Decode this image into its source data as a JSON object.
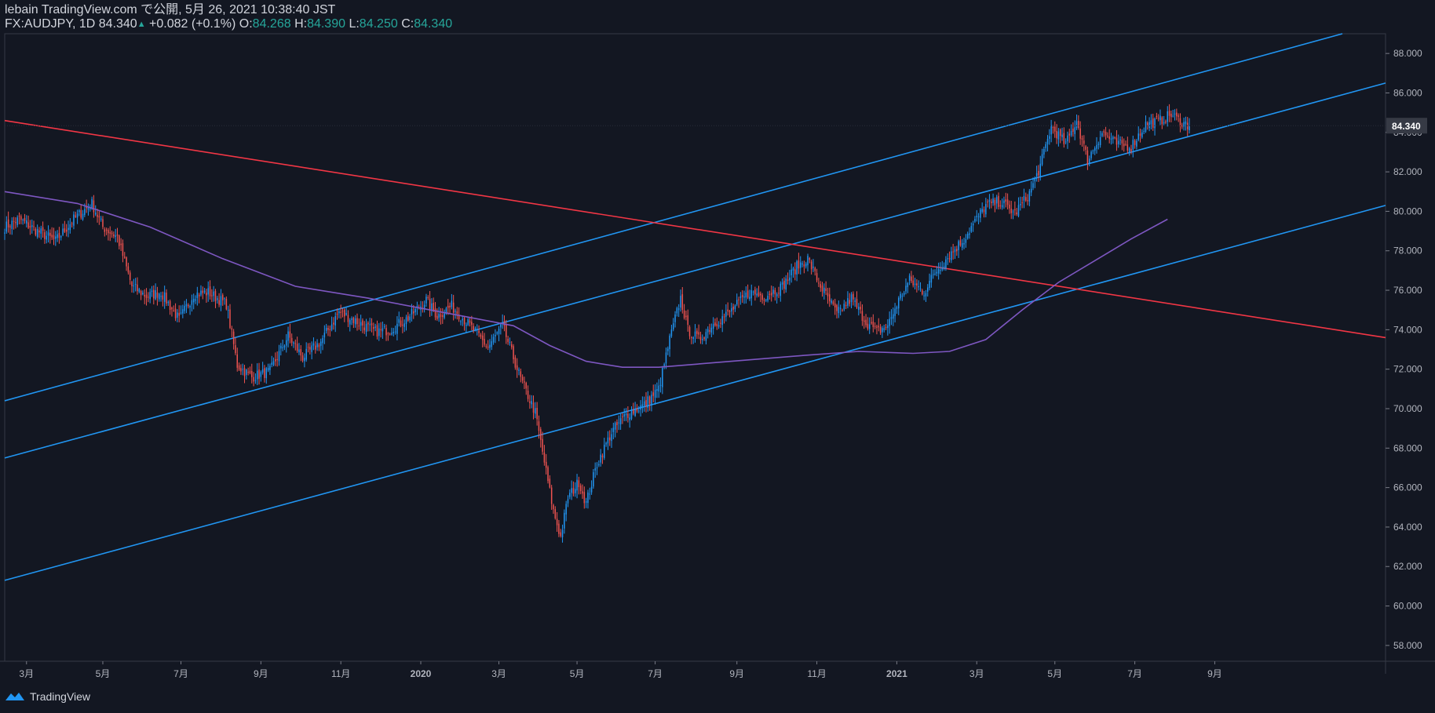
{
  "header": {
    "line1": "lebain TradingView.com で公開, 5月 26, 2021 10:38:40 JST",
    "symbol": "FX:AUDJPY, 1D",
    "last": "84.340",
    "change": "+0.082 (+0.1%)",
    "o_label": "O:",
    "o": "84.268",
    "h_label": "H:",
    "h": "84.390",
    "l_label": "L:",
    "l": "84.250",
    "c_label": "C:",
    "c": "84.340"
  },
  "footer": {
    "brand": "TradingView"
  },
  "colors": {
    "background": "#131722",
    "bull": "#2196f3",
    "bear": "#ef5350",
    "channel": "#2196f3",
    "resistance": "#f23645",
    "ma": "#7e57c2",
    "axis_text": "#b2b5be",
    "price_label_bg": "#363a45"
  },
  "chart_data": {
    "type": "candlestick",
    "symbol": "FX:AUDJPY",
    "interval": "1D",
    "y_range": [
      57.2,
      89.0
    ],
    "y_ticks": [
      "58.000",
      "60.000",
      "62.000",
      "64.000",
      "66.000",
      "68.000",
      "70.000",
      "72.000",
      "74.000",
      "76.000",
      "78.000",
      "80.000",
      "82.000",
      "84.000",
      "86.000",
      "88.000"
    ],
    "x_ticks": [
      "3月",
      "5月",
      "7月",
      "9月",
      "11月",
      "2020",
      "3月",
      "5月",
      "7月",
      "9月",
      "11月",
      "2021",
      "3月",
      "5月",
      "7月",
      "9月"
    ],
    "current_price_label": "84.340",
    "close_path": [
      [
        0,
        79.2
      ],
      [
        8,
        79.6
      ],
      [
        18,
        79.0
      ],
      [
        28,
        78.5
      ],
      [
        38,
        79.6
      ],
      [
        48,
        80.4
      ],
      [
        54,
        79.2
      ],
      [
        62,
        78.7
      ],
      [
        70,
        76.2
      ],
      [
        78,
        75.7
      ],
      [
        86,
        75.9
      ],
      [
        96,
        74.5
      ],
      [
        104,
        75.8
      ],
      [
        112,
        75.9
      ],
      [
        122,
        75.3
      ],
      [
        128,
        72.2
      ],
      [
        136,
        71.6
      ],
      [
        146,
        71.9
      ],
      [
        156,
        73.7
      ],
      [
        164,
        72.6
      ],
      [
        174,
        73.4
      ],
      [
        184,
        74.9
      ],
      [
        194,
        74.4
      ],
      [
        204,
        73.9
      ],
      [
        212,
        74.0
      ],
      [
        222,
        74.6
      ],
      [
        232,
        75.5
      ],
      [
        238,
        74.7
      ],
      [
        246,
        75.2
      ],
      [
        258,
        74.0
      ],
      [
        266,
        73.1
      ],
      [
        274,
        74.2
      ],
      [
        284,
        71.5
      ],
      [
        292,
        69.8
      ],
      [
        296,
        67.8
      ],
      [
        302,
        64.8
      ],
      [
        306,
        63.5
      ],
      [
        310,
        65.5
      ],
      [
        316,
        66.3
      ],
      [
        320,
        65.2
      ],
      [
        326,
        67.2
      ],
      [
        334,
        68.8
      ],
      [
        342,
        69.7
      ],
      [
        352,
        70.2
      ],
      [
        360,
        71.0
      ],
      [
        366,
        73.5
      ],
      [
        372,
        75.6
      ],
      [
        376,
        74.0
      ],
      [
        382,
        73.5
      ],
      [
        390,
        74.3
      ],
      [
        398,
        74.8
      ],
      [
        410,
        75.9
      ],
      [
        418,
        75.7
      ],
      [
        428,
        76.2
      ],
      [
        436,
        77.2
      ],
      [
        442,
        77.6
      ],
      [
        448,
        76.4
      ],
      [
        458,
        74.8
      ],
      [
        466,
        75.6
      ],
      [
        474,
        74.4
      ],
      [
        480,
        73.9
      ],
      [
        486,
        74.2
      ],
      [
        492,
        75.5
      ],
      [
        498,
        76.5
      ],
      [
        506,
        75.9
      ],
      [
        512,
        76.9
      ],
      [
        520,
        77.8
      ],
      [
        528,
        78.6
      ],
      [
        532,
        79.2
      ],
      [
        540,
        80.3
      ],
      [
        548,
        80.5
      ],
      [
        556,
        79.9
      ],
      [
        564,
        80.9
      ],
      [
        570,
        82.3
      ],
      [
        576,
        84.3
      ],
      [
        584,
        83.4
      ],
      [
        590,
        84.6
      ],
      [
        596,
        82.6
      ],
      [
        604,
        84.0
      ],
      [
        612,
        83.4
      ],
      [
        620,
        83.3
      ],
      [
        628,
        84.4
      ],
      [
        636,
        84.6
      ],
      [
        642,
        84.9
      ],
      [
        648,
        84.5
      ],
      [
        652,
        84.34
      ]
    ],
    "trendlines": [
      {
        "kind": "channel-upper",
        "from": [
          "2019-02",
          "70.4"
        ],
        "to": [
          "2021-09",
          "89.0"
        ]
      },
      {
        "kind": "channel-middle",
        "from": [
          "2019-02",
          "67.5"
        ],
        "to": [
          "2021-10",
          "86.5"
        ]
      },
      {
        "kind": "channel-lower",
        "from": [
          "2019-02",
          "61.3"
        ],
        "to": [
          "2021-10",
          "80.3"
        ]
      },
      {
        "kind": "resistance",
        "from": [
          "2019-02",
          "84.6"
        ],
        "to": [
          "2021-10",
          "73.6"
        ]
      }
    ],
    "moving_average": [
      [
        0,
        81.0
      ],
      [
        40,
        80.4
      ],
      [
        80,
        79.2
      ],
      [
        120,
        77.6
      ],
      [
        160,
        76.2
      ],
      [
        200,
        75.6
      ],
      [
        240,
        74.9
      ],
      [
        280,
        74.2
      ],
      [
        300,
        73.2
      ],
      [
        320,
        72.4
      ],
      [
        340,
        72.1
      ],
      [
        360,
        72.1
      ],
      [
        400,
        72.4
      ],
      [
        440,
        72.7
      ],
      [
        470,
        72.9
      ],
      [
        500,
        72.8
      ],
      [
        520,
        72.9
      ],
      [
        540,
        73.5
      ],
      [
        560,
        75.0
      ],
      [
        580,
        76.4
      ],
      [
        600,
        77.5
      ],
      [
        620,
        78.6
      ],
      [
        640,
        79.6
      ]
    ]
  }
}
